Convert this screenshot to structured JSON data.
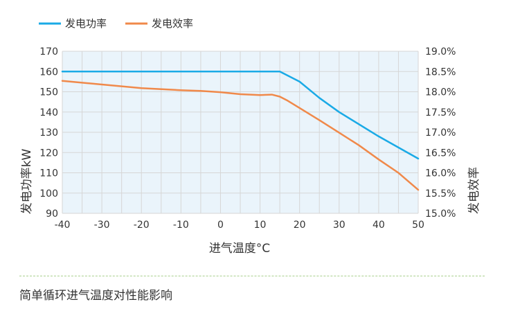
{
  "colors": {
    "power": "#1aaae6",
    "efficiency": "#f0894a",
    "grid": "#d6d6d6",
    "plot_fill": "#eaf4fb"
  },
  "caption": "简单循环进气温度对性能影响",
  "chart_data": {
    "type": "line",
    "xlabel": "进气温度°C",
    "ylabel": "发电功率kW",
    "y2label": "发电效率",
    "xlim": [
      -40,
      50
    ],
    "ylim": [
      90,
      170
    ],
    "y2lim": [
      15.0,
      19.0
    ],
    "x_ticks": [
      -40,
      -30,
      -20,
      -10,
      0,
      10,
      20,
      30,
      40,
      50
    ],
    "y_ticks": [
      90,
      100,
      110,
      120,
      130,
      140,
      150,
      160,
      170
    ],
    "y2_ticks": [
      "15.0%",
      "15.5%",
      "16.0%",
      "16.5%",
      "17.0%",
      "17.5%",
      "18.0%",
      "18.5%",
      "19.0%"
    ],
    "grid": true,
    "legend_position": "top-left",
    "series": [
      {
        "name": "发电功率",
        "axis": "left",
        "color_key": "power",
        "x": [
          -40,
          -30,
          -20,
          -10,
          0,
          10,
          15,
          20,
          25,
          30,
          40,
          50
        ],
        "y": [
          160,
          160,
          160,
          160,
          160,
          160,
          160,
          155,
          147,
          140,
          128,
          117
        ]
      },
      {
        "name": "发电效率",
        "axis": "right",
        "color_key": "efficiency",
        "x": [
          -40,
          -30,
          -20,
          -10,
          -5,
          0,
          5,
          10,
          13,
          15,
          17,
          20,
          25,
          30,
          35,
          40,
          45,
          50
        ],
        "y": [
          18.27,
          18.18,
          18.09,
          18.04,
          18.02,
          17.99,
          17.94,
          17.92,
          17.93,
          17.88,
          17.78,
          17.6,
          17.3,
          16.99,
          16.68,
          16.33,
          16.0,
          15.58
        ]
      }
    ]
  }
}
